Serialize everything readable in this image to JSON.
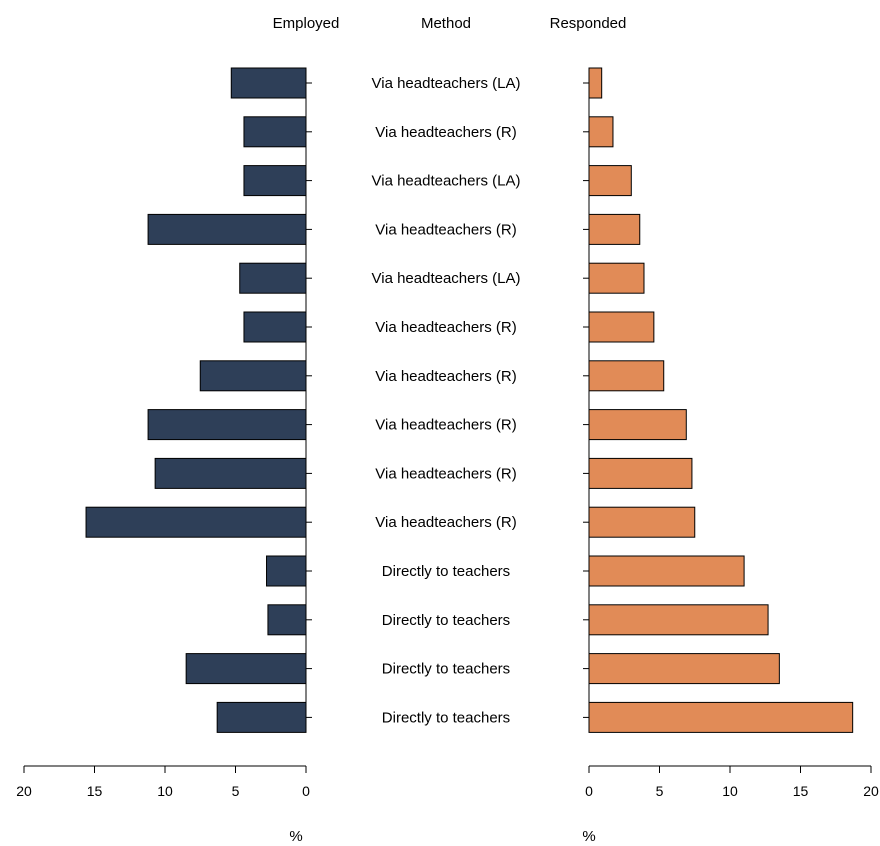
{
  "headers": {
    "left": "Employed",
    "middle": "Method",
    "right": "Responded"
  },
  "colors": {
    "employed": "#2e3f58",
    "responded": "#e18b57",
    "bar_stroke": "#000000"
  },
  "chart_data": {
    "type": "bar",
    "orientation": "horizontal",
    "layout": "back-to-back",
    "categories": [
      "Via headteachers (LA)",
      "Via headteachers (R)",
      "Via headteachers (LA)",
      "Via headteachers (R)",
      "Via headteachers (LA)",
      "Via headteachers (R)",
      "Via headteachers (R)",
      "Via headteachers (R)",
      "Via headteachers (R)",
      "Via headteachers (R)",
      "Directly to teachers",
      "Directly to teachers",
      "Directly to teachers",
      "Directly to teachers"
    ],
    "series": [
      {
        "name": "Employed",
        "values": [
          5.3,
          4.4,
          4.4,
          11.2,
          4.7,
          4.4,
          7.5,
          11.2,
          10.7,
          15.6,
          2.8,
          2.7,
          8.5,
          6.3
        ]
      },
      {
        "name": "Responded",
        "values": [
          0.9,
          1.7,
          3.0,
          3.6,
          3.9,
          4.6,
          5.3,
          6.9,
          7.3,
          7.5,
          11.0,
          12.7,
          13.5,
          18.7
        ]
      }
    ],
    "xlim": [
      0,
      20
    ],
    "ticks": [
      0,
      5,
      10,
      15,
      20
    ],
    "xlabel_left": "%",
    "xlabel_right": "%",
    "grid": false
  }
}
